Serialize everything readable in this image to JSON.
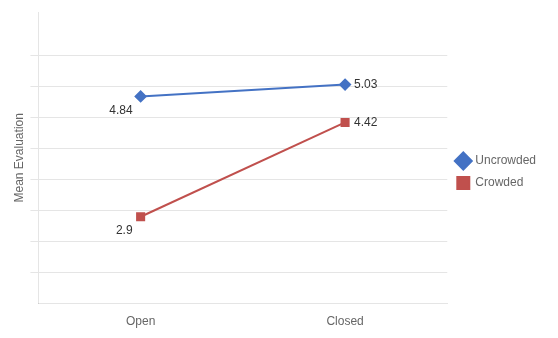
{
  "chart_data": {
    "type": "line",
    "ylabel": "Mean Evaluation",
    "categories": [
      "Open",
      "Closed"
    ],
    "series": [
      {
        "name": "Uncrowded",
        "color": "#4472C4",
        "marker": "diamond",
        "values": [
          4.84,
          5.03
        ]
      },
      {
        "name": "Crowded",
        "color": "#C0504D",
        "marker": "square",
        "values": [
          2.9,
          4.42
        ]
      }
    ],
    "ylim": [
      1.5,
      6.2
    ],
    "yticks": [
      2.0,
      2.5,
      3.0,
      3.5,
      4.0,
      4.5,
      5.0,
      5.5
    ],
    "grid": true,
    "tick_labels": "x",
    "legend": "right",
    "data_labels": true
  }
}
